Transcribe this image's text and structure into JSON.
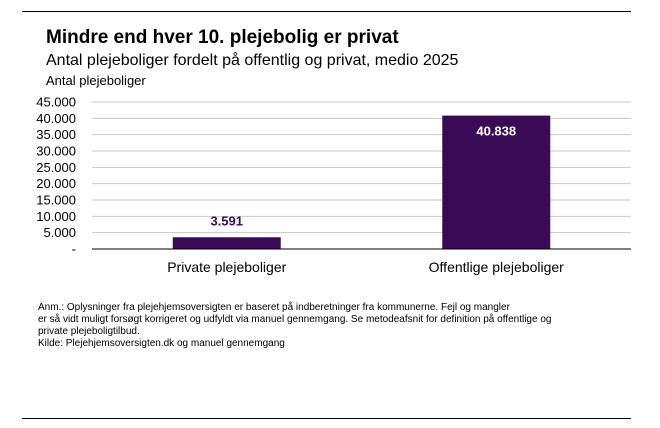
{
  "chart_data": {
    "type": "bar",
    "title": "Mindre end hver 10. plejebolig er privat",
    "subtitle": "Antal plejeboliger fordelt på offentlig og privat, medio 2025",
    "ylabel": "Antal plejeboliger",
    "xlabel": "",
    "categories": [
      "Private plejeboliger",
      "Offentlige plejeboliger"
    ],
    "values": [
      3591,
      40838
    ],
    "value_labels": [
      "3.591",
      "40.838"
    ],
    "ylim": [
      0,
      45000
    ],
    "yticks": [
      0,
      5000,
      10000,
      15000,
      20000,
      25000,
      30000,
      35000,
      40000,
      45000
    ],
    "ytick_labels": [
      "-",
      "5.000",
      "10.000",
      "15.000",
      "20.000",
      "25.000",
      "30.000",
      "35.000",
      "40.000",
      "45.000"
    ],
    "grid": true,
    "bar_color": "#3b0a57",
    "value_label_colors": [
      "#3b0a57",
      "#ffffff"
    ]
  },
  "note": {
    "lines": [
      "Anm.: Oplysninger fra plejehjemsoversigten er baseret på indberetninger fra kommunerne. Fejl og mangler",
      "er så vidt muligt forsøgt korrigeret og udfyldt via manuel gennemgang. Se metodeafsnit for definition på offentlige og",
      "private plejeboligtilbud."
    ],
    "source": "Kilde: Plejehjemsoversigten.dk og manuel gennemgang"
  }
}
